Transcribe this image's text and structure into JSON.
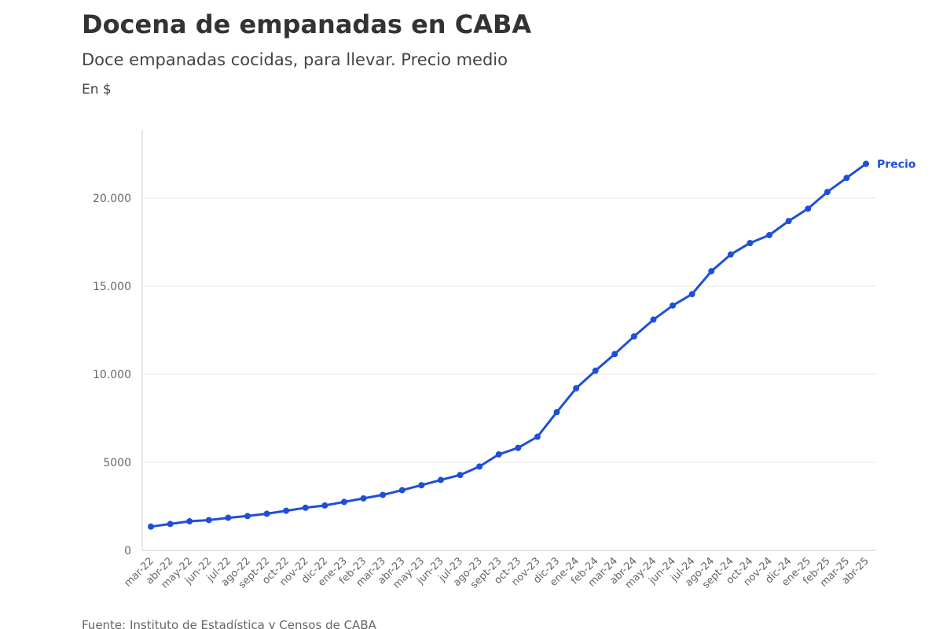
{
  "header": {
    "title": "Docena de empanadas en CABA",
    "subtitle": "Doce empanadas cocidas, para llevar. Precio medio",
    "unit": "En $"
  },
  "footer": {
    "source": "Fuente: Instituto de Estadística y Censos de CABA"
  },
  "colors": {
    "series": "#1f4fd8",
    "grid": "#e6e6e6",
    "axis": "#cccccc",
    "tick_text": "#666666"
  },
  "chart_data": {
    "type": "line",
    "title": "Docena de empanadas en CABA",
    "subtitle": "Doce empanadas cocidas, para llevar. Precio medio",
    "ylabel": "En $",
    "xlabel": "",
    "ylim": [
      0,
      22000
    ],
    "grid": true,
    "legend": "end-of-line label",
    "y_ticks": [
      {
        "value": 0,
        "label": "0"
      },
      {
        "value": 5000,
        "label": "5000"
      },
      {
        "value": 10000,
        "label": "10.000"
      },
      {
        "value": 15000,
        "label": "15.000"
      },
      {
        "value": 20000,
        "label": "20.000"
      }
    ],
    "categories": [
      "mar-22",
      "abr-22",
      "may-22",
      "jun-22",
      "jul-22",
      "ago-22",
      "sept-22",
      "oct-22",
      "nov-22",
      "dic-22",
      "ene-23",
      "feb-23",
      "mar-23",
      "abr-23",
      "may-23",
      "jun-23",
      "jul-23",
      "ago-23",
      "sept-23",
      "oct-23",
      "nov-23",
      "dic-23",
      "ene-24",
      "feb-24",
      "mar-24",
      "abr-24",
      "may-24",
      "jun-24",
      "jul-24",
      "ago-24",
      "sept-24",
      "oct-24",
      "nov-24",
      "dic-24",
      "ene-25",
      "feb-25",
      "mar-25",
      "abr-25"
    ],
    "series": [
      {
        "name": "Precio",
        "values": [
          1350,
          1500,
          1650,
          1720,
          1850,
          1950,
          2080,
          2250,
          2420,
          2550,
          2750,
          2950,
          3150,
          3420,
          3700,
          4000,
          4280,
          4760,
          5450,
          5820,
          6450,
          7850,
          9200,
          10200,
          11150,
          12150,
          13100,
          13900,
          14550,
          15850,
          16800,
          17450,
          17900,
          18700,
          19400,
          20350,
          21150,
          21950
        ]
      }
    ]
  }
}
